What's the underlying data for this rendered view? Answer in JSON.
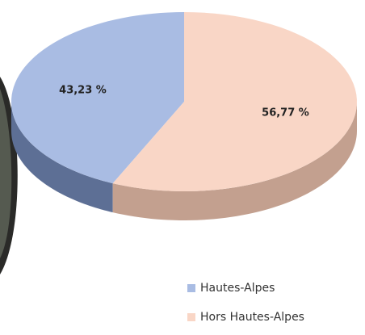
{
  "chart_data": {
    "type": "pie",
    "categories": [
      "Hautes-Alpes",
      "Hors Hautes-Alpes"
    ],
    "values": [
      43.23,
      56.77
    ],
    "value_labels": [
      "43,23 %",
      "56,77 %"
    ],
    "colors": [
      "#a9bce3",
      "#f9d6c6"
    ],
    "side_colors": [
      "#5d6f95",
      "#c3a08f"
    ],
    "legend": "bottom-right"
  }
}
